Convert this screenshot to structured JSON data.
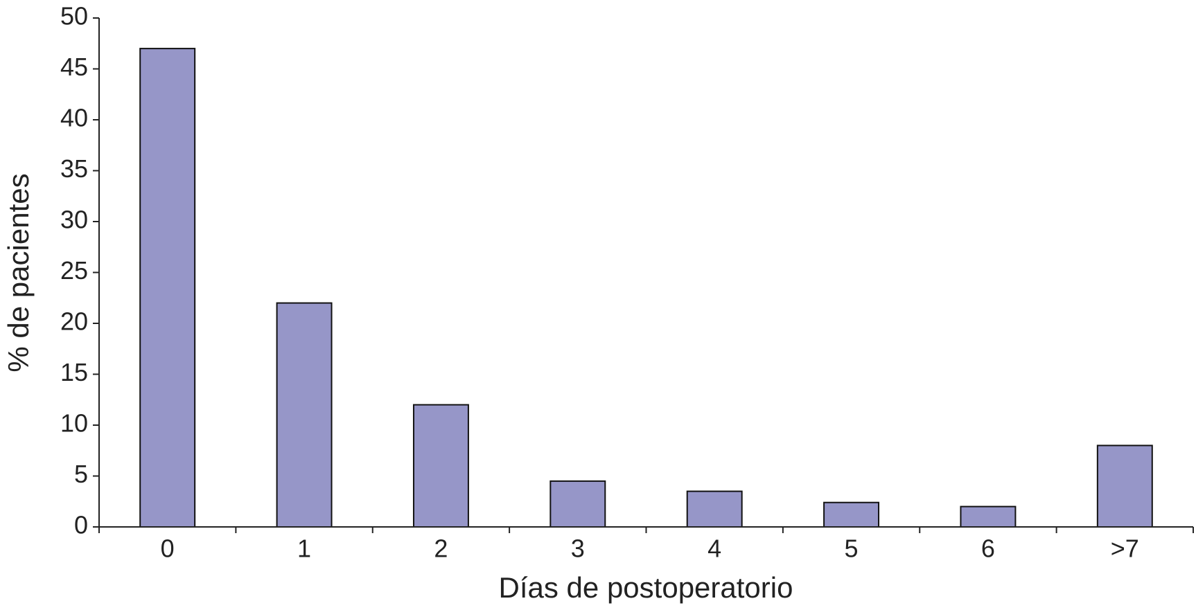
{
  "chart_data": {
    "type": "bar",
    "xlabel": "Días de postoperatorio",
    "ylabel": "% de pacientes",
    "categories": [
      "0",
      "1",
      "2",
      "3",
      "4",
      "5",
      "6",
      ">7"
    ],
    "values": [
      47,
      22,
      12,
      4.5,
      3.5,
      2.4,
      2,
      8
    ],
    "color": "#9696c8",
    "ylim": [
      0,
      50
    ],
    "yticks": [
      0,
      5,
      10,
      15,
      20,
      25,
      30,
      35,
      40,
      45,
      50
    ],
    "grid": false
  }
}
